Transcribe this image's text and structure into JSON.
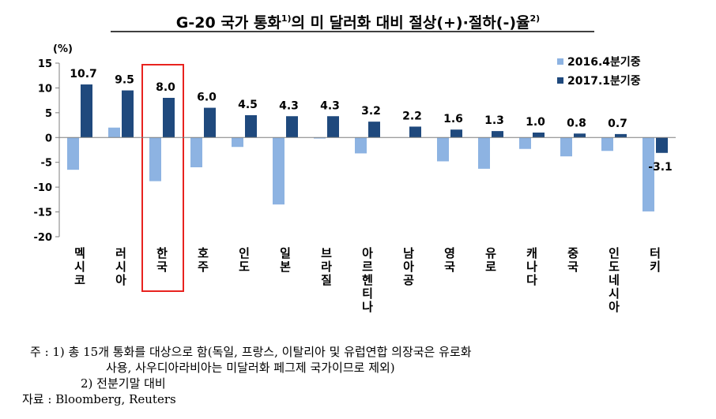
{
  "chart_data": {
    "type": "bar",
    "title": "G-20 국가 통화",
    "title_sup1": "1)",
    "title_mid": "의 미 달러화 대비 절상(+)·절하(-)율",
    "title_sup2": "2)",
    "ylabel": "(%)",
    "ylim": [
      -20,
      15
    ],
    "yticks": [
      15,
      10,
      5,
      0,
      -5,
      -10,
      -15,
      -20
    ],
    "categories": [
      "멕시코",
      "러시아",
      "한국",
      "호주",
      "인도",
      "일본",
      "브라질",
      "아르헨티나",
      "남아공",
      "영국",
      "유로",
      "캐나다",
      "중국",
      "인도네시아",
      "터키"
    ],
    "series": [
      {
        "name": "2016.4분기중",
        "color": "#8db3e2",
        "values": [
          -6.5,
          2.0,
          -8.8,
          -6.0,
          -1.9,
          -13.5,
          -0.2,
          -3.2,
          0.0,
          -4.8,
          -6.3,
          -2.3,
          -3.8,
          -2.7,
          -14.9
        ]
      },
      {
        "name": "2017.1분기중",
        "color": "#1f497d",
        "values": [
          10.7,
          9.5,
          8.0,
          6.0,
          4.5,
          4.3,
          4.3,
          3.2,
          2.2,
          1.6,
          1.3,
          1.0,
          0.8,
          0.7,
          -3.1
        ]
      }
    ],
    "data_labels": [
      "10.7",
      "9.5",
      "8.0",
      "6.0",
      "4.5",
      "4.3",
      "4.3",
      "3.2",
      "2.2",
      "1.6",
      "1.3",
      "1.0",
      "0.8",
      "0.7",
      "-3.1"
    ],
    "highlight_category": "한국",
    "highlight_color": "#e8231f",
    "legend_position": "top-right",
    "grid": false
  },
  "notes": {
    "line1": "주 : 1) 총 15개 통화를 대상으로 함(독일, 프랑스, 이탈리아 및 유럽연합 의장국은 유로화",
    "line2": "사용, 사우디아라비아는 미달러화 페그제 국가이므로 제외)",
    "line3": "2) 전분기말 대비",
    "line4": "자료 : Bloomberg, Reuters"
  }
}
